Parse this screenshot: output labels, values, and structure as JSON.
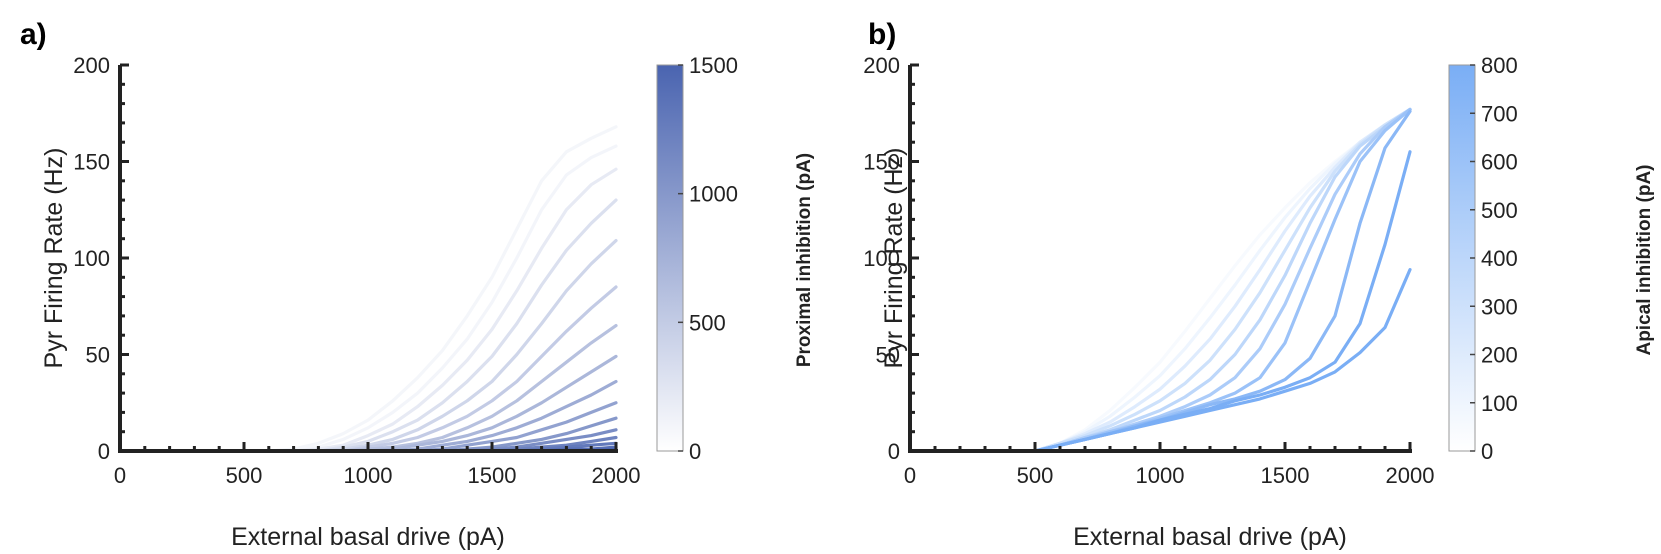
{
  "chart_data": [
    {
      "type": "line",
      "panel_label": "a)",
      "xlabel": "External basal drive (pA)",
      "ylabel": "Pyr Firing Rate (Hz)",
      "xlim": [
        0,
        2000
      ],
      "ylim": [
        0,
        200
      ],
      "xticks": [
        "0",
        "500",
        "1000",
        "1500",
        "2000"
      ],
      "yticks": [
        "0",
        "50",
        "100",
        "150",
        "200"
      ],
      "grid": false,
      "colorbar": {
        "label": "Proximal inhibition (pA)",
        "range": [
          0,
          1500
        ],
        "ticks": [
          "0",
          "500",
          "1000",
          "1500"
        ],
        "color_low": "#ffffff",
        "color_high": "#4a64b0"
      },
      "x": [
        500,
        600,
        700,
        800,
        900,
        1000,
        1100,
        1200,
        1300,
        1400,
        1500,
        1600,
        1700,
        1800,
        1900,
        2000
      ],
      "series": [
        {
          "inhibition": 0,
          "values": [
            0,
            0,
            1,
            4,
            9,
            16,
            26,
            38,
            52,
            70,
            90,
            115,
            140,
            155,
            162,
            168
          ]
        },
        {
          "inhibition": 100,
          "values": [
            0,
            0,
            0,
            2,
            6,
            12,
            20,
            30,
            43,
            58,
            77,
            100,
            125,
            143,
            152,
            158
          ]
        },
        {
          "inhibition": 200,
          "values": [
            0,
            0,
            0,
            1,
            3,
            8,
            14,
            23,
            34,
            47,
            63,
            83,
            105,
            125,
            138,
            146
          ]
        },
        {
          "inhibition": 300,
          "values": [
            0,
            0,
            0,
            0,
            2,
            5,
            10,
            16,
            25,
            36,
            49,
            66,
            86,
            104,
            118,
            130
          ]
        },
        {
          "inhibition": 400,
          "values": [
            0,
            0,
            0,
            0,
            1,
            3,
            6,
            11,
            18,
            26,
            36,
            50,
            66,
            83,
            97,
            109
          ]
        },
        {
          "inhibition": 500,
          "values": [
            0,
            0,
            0,
            0,
            0,
            2,
            4,
            7,
            12,
            18,
            26,
            36,
            49,
            62,
            74,
            85
          ]
        },
        {
          "inhibition": 600,
          "values": [
            0,
            0,
            0,
            0,
            0,
            1,
            2,
            4,
            7,
            12,
            18,
            26,
            36,
            46,
            56,
            65
          ]
        },
        {
          "inhibition": 700,
          "values": [
            0,
            0,
            0,
            0,
            0,
            0,
            1,
            3,
            5,
            8,
            12,
            18,
            25,
            33,
            41,
            49
          ]
        },
        {
          "inhibition": 800,
          "values": [
            0,
            0,
            0,
            0,
            0,
            0,
            0,
            1,
            3,
            5,
            8,
            12,
            17,
            23,
            29,
            36
          ]
        },
        {
          "inhibition": 900,
          "values": [
            0,
            0,
            0,
            0,
            0,
            0,
            0,
            0,
            1,
            3,
            5,
            7,
            11,
            15,
            20,
            25
          ]
        },
        {
          "inhibition": 1000,
          "values": [
            0,
            0,
            0,
            0,
            0,
            0,
            0,
            0,
            0,
            1,
            2,
            4,
            6,
            9,
            13,
            17
          ]
        },
        {
          "inhibition": 1100,
          "values": [
            0,
            0,
            0,
            0,
            0,
            0,
            0,
            0,
            0,
            0,
            1,
            2,
            4,
            6,
            8,
            11
          ]
        },
        {
          "inhibition": 1200,
          "values": [
            0,
            0,
            0,
            0,
            0,
            0,
            0,
            0,
            0,
            0,
            0,
            1,
            2,
            3,
            5,
            7
          ]
        },
        {
          "inhibition": 1300,
          "values": [
            0,
            0,
            0,
            0,
            0,
            0,
            0,
            0,
            0,
            0,
            0,
            0,
            1,
            2,
            3,
            4
          ]
        },
        {
          "inhibition": 1400,
          "values": [
            0,
            0,
            0,
            0,
            0,
            0,
            0,
            0,
            0,
            0,
            0,
            0,
            0,
            1,
            1,
            2
          ]
        },
        {
          "inhibition": 1500,
          "values": [
            0,
            0,
            0,
            0,
            0,
            0,
            0,
            0,
            0,
            0,
            0,
            0,
            0,
            0,
            0,
            1
          ]
        }
      ]
    },
    {
      "type": "line",
      "panel_label": "b)",
      "xlabel": "External basal drive (pA)",
      "ylabel": "Pyr Firing Rate (Hz)",
      "xlim": [
        0,
        2000
      ],
      "ylim": [
        0,
        200
      ],
      "xticks": [
        "0",
        "500",
        "1000",
        "1500",
        "2000"
      ],
      "yticks": [
        "0",
        "50",
        "100",
        "150",
        "200"
      ],
      "grid": false,
      "colorbar": {
        "label": "Apical inhibition (pA)",
        "range": [
          0,
          800
        ],
        "ticks": [
          "0",
          "100",
          "200",
          "300",
          "400",
          "500",
          "600",
          "700",
          "800"
        ],
        "color_low": "#ffffff",
        "color_high": "#7aaef5"
      },
      "x": [
        500,
        600,
        700,
        800,
        900,
        1000,
        1100,
        1200,
        1300,
        1400,
        1500,
        1600,
        1700,
        1800,
        1900,
        2000
      ],
      "series": [
        {
          "inhibition": 0,
          "values": [
            0,
            4,
            11,
            21,
            33,
            46,
            62,
            79,
            96,
            112,
            126,
            139,
            150,
            160,
            168,
            176
          ]
        },
        {
          "inhibition": 100,
          "values": [
            0,
            4,
            10,
            18,
            28,
            39,
            53,
            69,
            86,
            104,
            121,
            136,
            149,
            160,
            169,
            177
          ]
        },
        {
          "inhibition": 200,
          "values": [
            0,
            4,
            9,
            15,
            23,
            32,
            44,
            58,
            75,
            94,
            114,
            132,
            147,
            160,
            169,
            177
          ]
        },
        {
          "inhibition": 300,
          "values": [
            0,
            4,
            8,
            13,
            19,
            26,
            35,
            47,
            63,
            82,
            104,
            126,
            145,
            159,
            169,
            177
          ]
        },
        {
          "inhibition": 400,
          "values": [
            0,
            3,
            7,
            11,
            16,
            21,
            28,
            37,
            50,
            68,
            91,
            118,
            142,
            158,
            168,
            177
          ]
        },
        {
          "inhibition": 500,
          "values": [
            0,
            3,
            7,
            10,
            14,
            18,
            23,
            29,
            38,
            53,
            76,
            105,
            133,
            154,
            168,
            177
          ]
        },
        {
          "inhibition": 600,
          "values": [
            0,
            3,
            6,
            10,
            13,
            17,
            21,
            25,
            30,
            38,
            56,
            88,
            120,
            150,
            166,
            177
          ]
        },
        {
          "inhibition": 700,
          "values": [
            0,
            3,
            6,
            9,
            13,
            16,
            20,
            24,
            27,
            31,
            37,
            48,
            70,
            118,
            157,
            176
          ]
        },
        {
          "inhibition": 800,
          "values": [
            0,
            3,
            6,
            9,
            12,
            16,
            19,
            22,
            26,
            29,
            33,
            38,
            46,
            66,
            107,
            155
          ]
        },
        {
          "inhibition": 900,
          "values": [
            0,
            3,
            6,
            9,
            12,
            15,
            18,
            21,
            24,
            27,
            31,
            35,
            41,
            51,
            64,
            94
          ]
        }
      ]
    }
  ]
}
